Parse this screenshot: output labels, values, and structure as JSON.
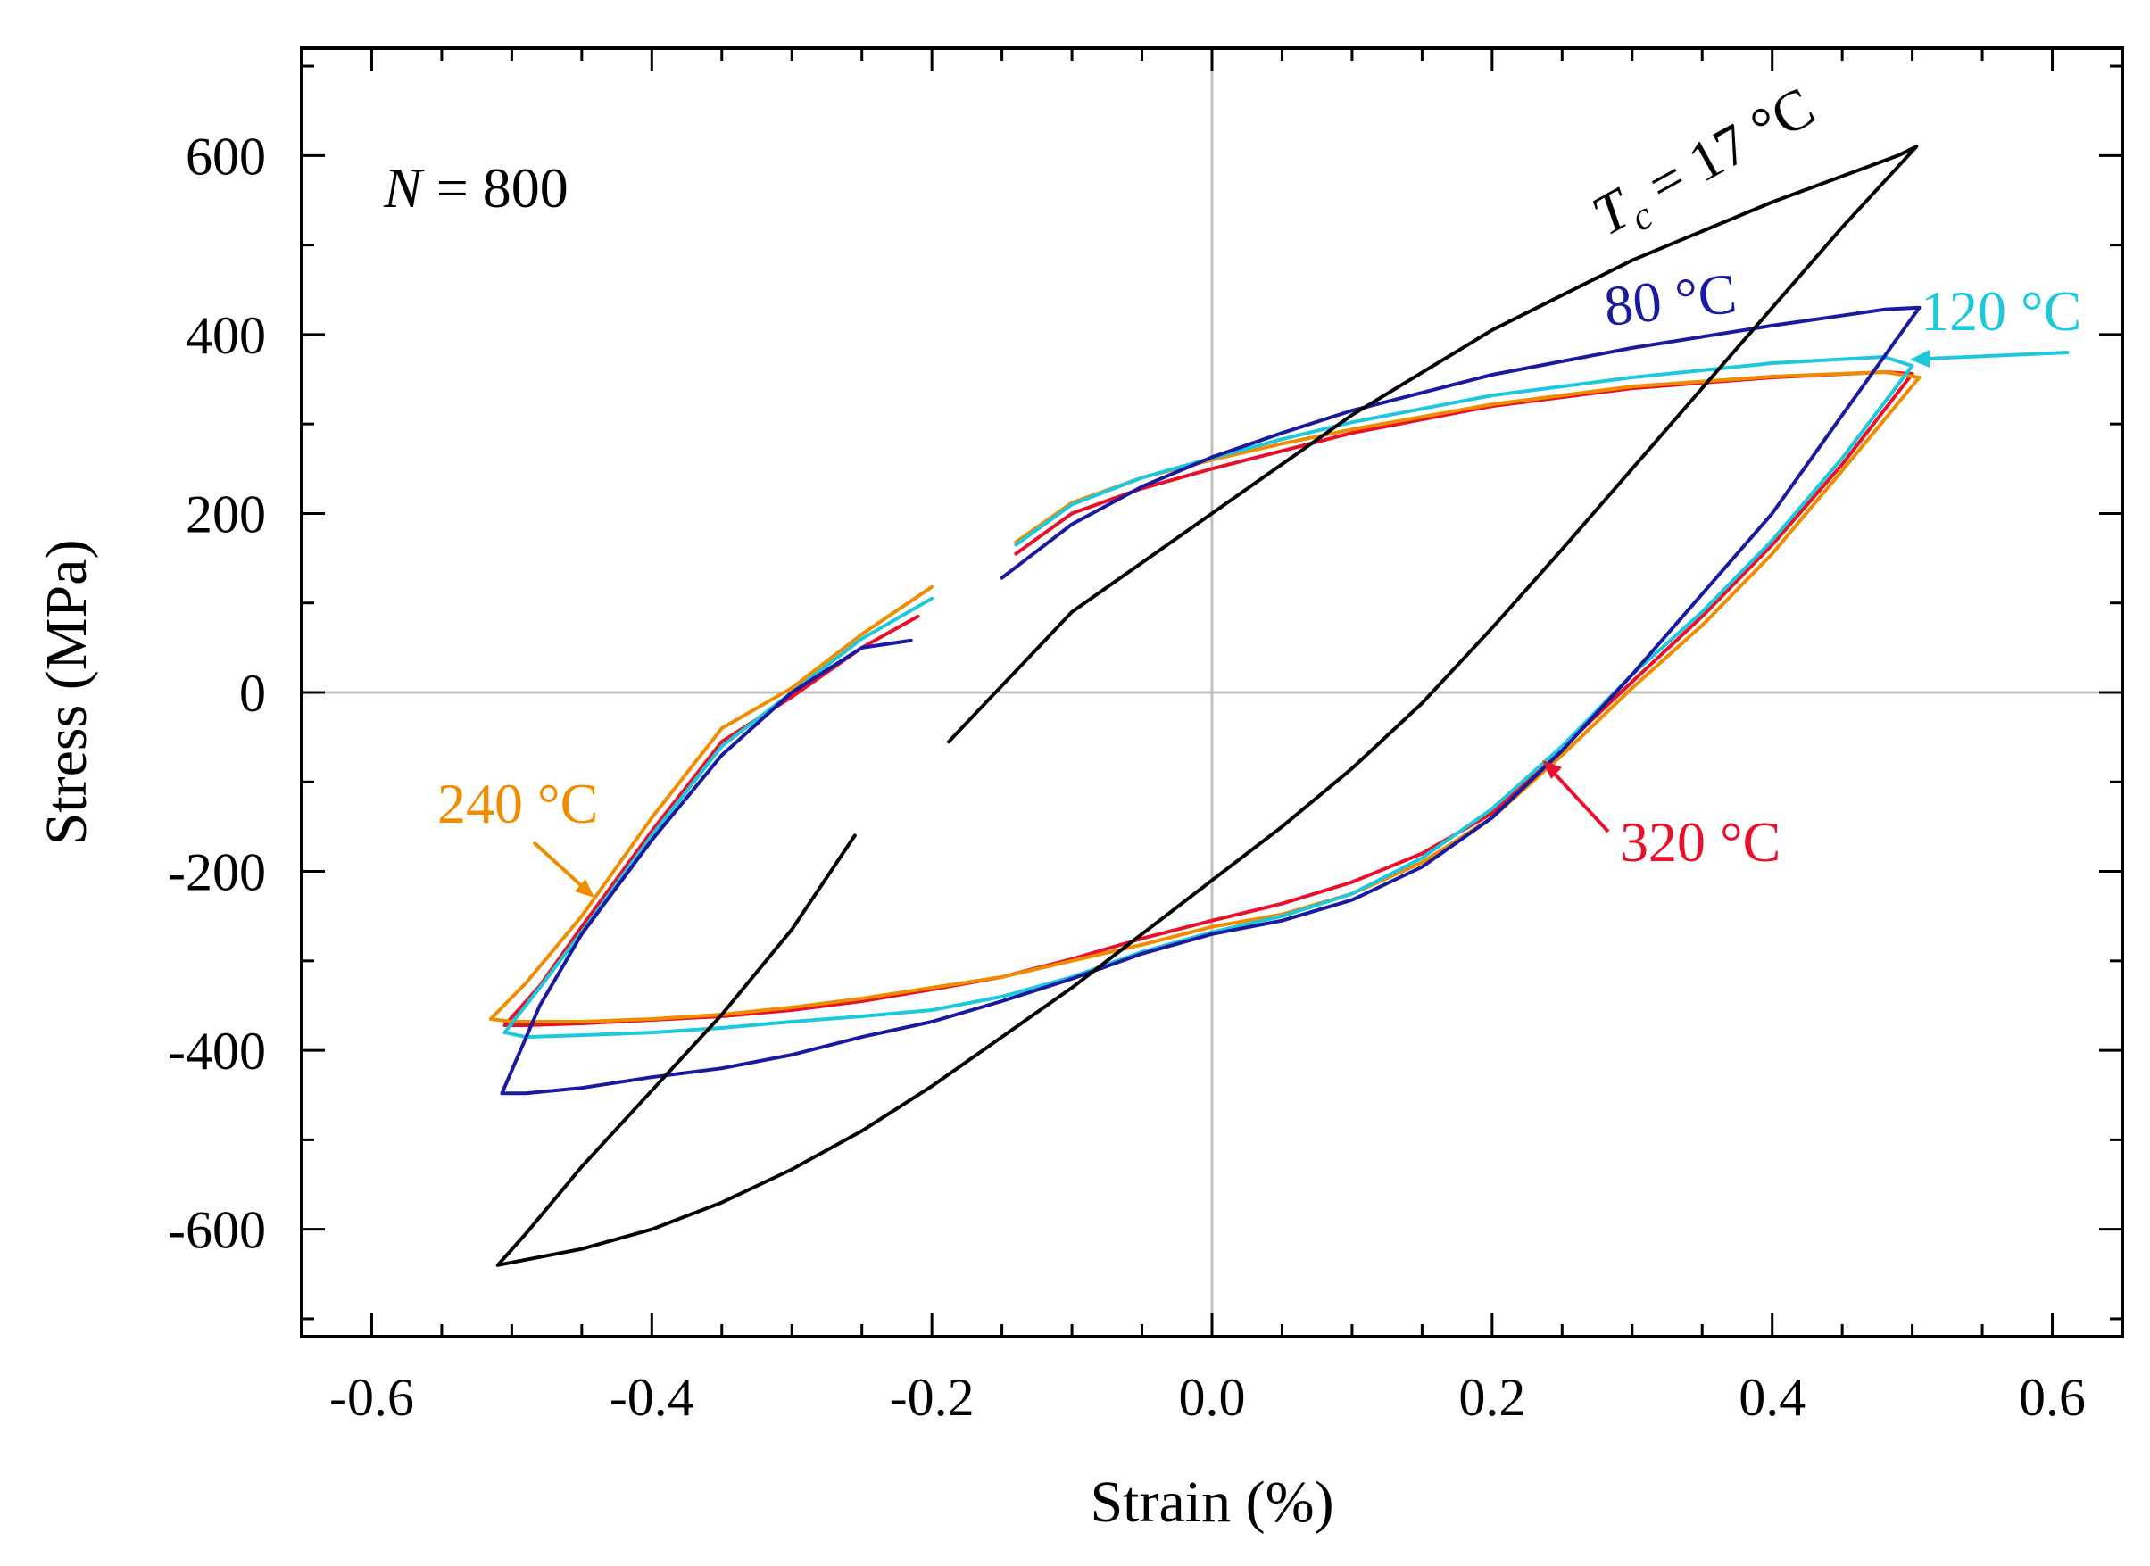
{
  "chart_data": {
    "type": "line",
    "title": "",
    "xlabel": "Strain (%)",
    "ylabel": "Stress (MPa)",
    "xlim": [
      -0.65,
      0.65
    ],
    "ylim": [
      -720,
      720
    ],
    "xticks": [
      -0.6,
      -0.4,
      -0.2,
      0.0,
      0.2,
      0.4,
      0.6
    ],
    "xtick_labels": [
      "-0.6",
      "-0.4",
      "-0.2",
      "0.0",
      "0.2",
      "0.4",
      "0.6"
    ],
    "yticks": [
      -600,
      -400,
      -200,
      0,
      200,
      400,
      600
    ],
    "ytick_labels": [
      "-600",
      "-400",
      "-200",
      "0",
      "200",
      "400",
      "600"
    ],
    "cycle_annotation": {
      "prefix": "N",
      "text": " = 800"
    },
    "series": [
      {
        "name": "17 °C",
        "color": "#000000",
        "x": [
          -0.188,
          -0.1,
          0.0,
          0.1,
          0.2,
          0.3,
          0.4,
          0.49,
          0.503,
          0.45,
          0.4,
          0.35,
          0.3,
          0.25,
          0.2,
          0.15,
          0.1,
          0.05,
          0.0,
          -0.05,
          -0.1,
          -0.15,
          -0.2,
          -0.25,
          -0.3,
          -0.35,
          -0.4,
          -0.45,
          -0.5,
          -0.51,
          -0.49,
          -0.45,
          -0.4,
          -0.35,
          -0.3,
          -0.255
        ],
        "y": [
          -55,
          90,
          200,
          310,
          405,
          483,
          548,
          600,
          610,
          520,
          430,
          340,
          250,
          160,
          72,
          -12,
          -85,
          -150,
          -210,
          -270,
          -330,
          -385,
          -440,
          -490,
          -533,
          -570,
          -600,
          -622,
          -637,
          -640,
          -605,
          -530,
          -445,
          -360,
          -265,
          -160
        ]
      },
      {
        "name": "80 °C",
        "color": "#1a1aa0",
        "x": [
          -0.15,
          -0.1,
          -0.05,
          0.0,
          0.05,
          0.1,
          0.2,
          0.3,
          0.4,
          0.48,
          0.505,
          0.45,
          0.4,
          0.35,
          0.3,
          0.25,
          0.2,
          0.15,
          0.1,
          0.05,
          0.0,
          -0.05,
          -0.1,
          -0.15,
          -0.2,
          -0.25,
          -0.3,
          -0.35,
          -0.4,
          -0.45,
          -0.49,
          -0.507,
          -0.48,
          -0.45,
          -0.4,
          -0.35,
          -0.3,
          -0.25,
          -0.215
        ],
        "y": [
          128,
          188,
          230,
          263,
          290,
          315,
          355,
          385,
          410,
          428,
          430,
          310,
          200,
          110,
          20,
          -65,
          -140,
          -195,
          -232,
          -255,
          -270,
          -292,
          -320,
          -345,
          -368,
          -385,
          -405,
          -420,
          -430,
          -442,
          -448,
          -448,
          -350,
          -270,
          -165,
          -70,
          0,
          50,
          58
        ]
      },
      {
        "name": "120 °C",
        "color": "#1ec8dc",
        "x": [
          -0.14,
          -0.1,
          -0.05,
          0.0,
          0.05,
          0.1,
          0.2,
          0.3,
          0.4,
          0.48,
          0.5,
          0.45,
          0.4,
          0.35,
          0.3,
          0.25,
          0.2,
          0.15,
          0.1,
          0.05,
          0.0,
          -0.05,
          -0.1,
          -0.15,
          -0.2,
          -0.25,
          -0.3,
          -0.35,
          -0.4,
          -0.45,
          -0.49,
          -0.505,
          -0.48,
          -0.45,
          -0.4,
          -0.35,
          -0.3,
          -0.25,
          -0.2
        ],
        "y": [
          165,
          210,
          240,
          262,
          283,
          302,
          332,
          352,
          368,
          375,
          365,
          262,
          170,
          90,
          20,
          -60,
          -130,
          -185,
          -225,
          -250,
          -268,
          -290,
          -318,
          -340,
          -355,
          -362,
          -368,
          -375,
          -380,
          -383,
          -385,
          -380,
          -330,
          -268,
          -160,
          -60,
          0,
          60,
          105
        ]
      },
      {
        "name": "240 °C",
        "color": "#f08c00",
        "x": [
          -0.14,
          -0.1,
          -0.05,
          0.0,
          0.05,
          0.1,
          0.2,
          0.3,
          0.4,
          0.48,
          0.505,
          0.45,
          0.4,
          0.35,
          0.3,
          0.25,
          0.2,
          0.15,
          0.1,
          0.05,
          0.0,
          -0.05,
          -0.1,
          -0.15,
          -0.2,
          -0.25,
          -0.3,
          -0.35,
          -0.4,
          -0.45,
          -0.5,
          -0.515,
          -0.49,
          -0.45,
          -0.4,
          -0.35,
          -0.3,
          -0.25,
          -0.2
        ],
        "y": [
          168,
          212,
          240,
          260,
          278,
          294,
          322,
          342,
          353,
          358,
          352,
          248,
          155,
          75,
          5,
          -70,
          -140,
          -190,
          -225,
          -248,
          -262,
          -282,
          -300,
          -318,
          -330,
          -342,
          -352,
          -360,
          -365,
          -368,
          -368,
          -365,
          -325,
          -250,
          -140,
          -40,
          5,
          65,
          118
        ]
      },
      {
        "name": "320 °C",
        "color": "#e8102a",
        "x": [
          -0.14,
          -0.1,
          -0.05,
          0.0,
          0.05,
          0.1,
          0.2,
          0.3,
          0.4,
          0.48,
          0.5,
          0.45,
          0.4,
          0.35,
          0.3,
          0.25,
          0.2,
          0.15,
          0.1,
          0.05,
          0.0,
          -0.05,
          -0.1,
          -0.15,
          -0.2,
          -0.25,
          -0.3,
          -0.35,
          -0.4,
          -0.45,
          -0.49,
          -0.505,
          -0.48,
          -0.45,
          -0.4,
          -0.35,
          -0.3,
          -0.25,
          -0.21
        ],
        "y": [
          155,
          200,
          228,
          250,
          270,
          290,
          320,
          340,
          352,
          358,
          356,
          255,
          165,
          85,
          12,
          -62,
          -135,
          -180,
          -212,
          -236,
          -255,
          -275,
          -298,
          -318,
          -332,
          -345,
          -355,
          -362,
          -366,
          -370,
          -372,
          -372,
          -328,
          -262,
          -155,
          -55,
          -5,
          50,
          85
        ]
      }
    ],
    "annotations": [
      {
        "prefix": "T",
        "sub": "c",
        "text": " = 17 °C",
        "color": "#000000"
      },
      {
        "text": "80 °C",
        "color": "#1a1aa0"
      },
      {
        "text": "120 °C",
        "color": "#1ec8dc"
      },
      {
        "text": "240 °C",
        "color": "#f08c00"
      },
      {
        "text": "320 °C",
        "color": "#e8102a"
      }
    ]
  }
}
